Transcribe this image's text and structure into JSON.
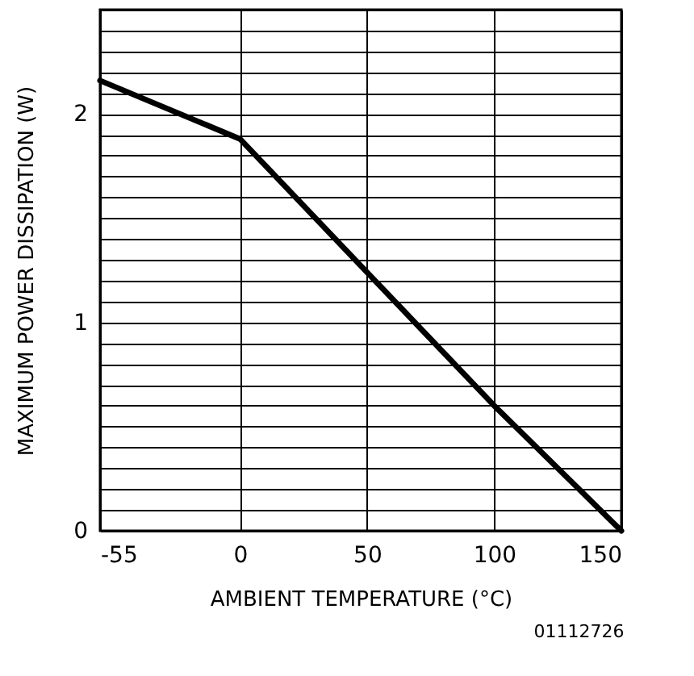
{
  "chart_data": {
    "type": "line",
    "xlabel": "AMBIENT TEMPERATURE (°C)",
    "ylabel": "MAXIMUM POWER DISSIPATION (W)",
    "annotations": [
      "01112726"
    ],
    "x": [
      -55,
      0,
      50,
      100,
      150
    ],
    "series": [
      {
        "color": "#000000",
        "values": [
          2.16,
          1.88,
          1.24,
          0.6,
          0
        ]
      }
    ],
    "xlim": [
      -55,
      150
    ],
    "xticks": [
      -55,
      0,
      50,
      100,
      150
    ],
    "ylim": [
      0,
      2.5
    ],
    "yticks": [
      0,
      {
        "value": 0.1,
        "label": null
      },
      {
        "value": 0.2,
        "label": null
      },
      {
        "value": 0.3,
        "label": null
      },
      {
        "value": 0.4,
        "label": null
      },
      {
        "value": 0.5,
        "label": null
      },
      {
        "value": 0.6,
        "label": null
      },
      {
        "value": 0.7,
        "label": null
      },
      {
        "value": 0.8,
        "label": null
      },
      {
        "value": 0.9,
        "label": null
      },
      1,
      {
        "value": 1.1,
        "label": null
      },
      {
        "value": 1.2,
        "label": null
      },
      {
        "value": 1.3,
        "label": null
      },
      {
        "value": 1.4,
        "label": null
      },
      {
        "value": 1.5,
        "label": null
      },
      {
        "value": 1.6,
        "label": null
      },
      {
        "value": 1.7,
        "label": null
      },
      {
        "value": 1.8,
        "label": null
      },
      {
        "value": 1.9,
        "label": null
      },
      2,
      {
        "value": 2.1,
        "label": null
      },
      {
        "value": 2.2,
        "label": null
      },
      {
        "value": 2.3,
        "label": null
      },
      {
        "value": 2.4,
        "label": null
      },
      {
        "value": 2.5,
        "label": null
      }
    ],
    "grid": true,
    "marker": "none",
    "line_style": "solid"
  }
}
